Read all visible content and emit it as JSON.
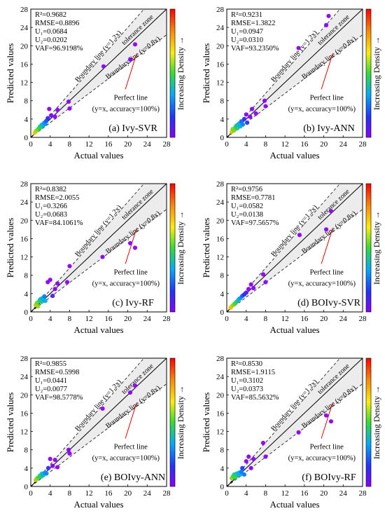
{
  "figure": {
    "common": {
      "xlabel": "Actual values",
      "ylabel": "Predicted values",
      "colorbar_label": "Increasing Density →",
      "boundary_upper": "Boundary line (y=1.2x)",
      "boundary_lower": "Boundary line (y=0.8x)",
      "tolerance": "tolerance zone",
      "perfect_line": "Perfect line",
      "perfect_line_sub": "(y=x, accuracy=100%)",
      "ticks": [
        "0",
        "4",
        "8",
        "12",
        "16",
        "20",
        "24",
        "28"
      ]
    }
  },
  "chart_data": [
    {
      "type": "scatter",
      "title": "(a) Ivy-SVR",
      "xlabel": "Actual values",
      "ylabel": "Predicted values",
      "xlim": [
        0,
        28
      ],
      "ylim": [
        0,
        28
      ],
      "metrics": [
        "R²=0.9682",
        "RMSE=0.8896",
        "U₁=0.0684",
        "U₂=0.0202",
        "VAF=96.9198%"
      ],
      "reference_lines": {
        "perfect": 1.0,
        "upper": 1.2,
        "lower": 0.8
      },
      "colorbar": {
        "label": "Increasing Density →",
        "range": [
          0,
          28
        ]
      },
      "points": [
        {
          "x": 0.8,
          "y": 1.0
        },
        {
          "x": 1.0,
          "y": 1.3
        },
        {
          "x": 1.2,
          "y": 1.5
        },
        {
          "x": 1.5,
          "y": 1.8
        },
        {
          "x": 1.7,
          "y": 2.0
        },
        {
          "x": 1.9,
          "y": 2.4
        },
        {
          "x": 2.1,
          "y": 2.2
        },
        {
          "x": 2.3,
          "y": 2.8
        },
        {
          "x": 2.5,
          "y": 2.6
        },
        {
          "x": 2.8,
          "y": 3.2
        },
        {
          "x": 3.0,
          "y": 2.9
        },
        {
          "x": 3.2,
          "y": 3.6
        },
        {
          "x": 3.5,
          "y": 4.2
        },
        {
          "x": 3.8,
          "y": 6.2
        },
        {
          "x": 4.2,
          "y": 4.8
        },
        {
          "x": 5.0,
          "y": 4.5
        },
        {
          "x": 5.5,
          "y": 6.0
        },
        {
          "x": 7.8,
          "y": 7.8
        },
        {
          "x": 8.0,
          "y": 6.3
        },
        {
          "x": 15.0,
          "y": 15.5
        },
        {
          "x": 20.5,
          "y": 17.0
        },
        {
          "x": 21.5,
          "y": 20.3
        }
      ]
    },
    {
      "type": "scatter",
      "title": "(b) Ivy-ANN",
      "xlabel": "Actual values",
      "ylabel": "Predicted values",
      "xlim": [
        0,
        28
      ],
      "ylim": [
        0,
        28
      ],
      "metrics": [
        "R²=0.9231",
        "RMSE=1.3822",
        "U₁=0.0947",
        "U₂=0.0310",
        "VAF=93.2350%"
      ],
      "reference_lines": {
        "perfect": 1.0,
        "upper": 1.2,
        "lower": 0.8
      },
      "colorbar": {
        "label": "Increasing Density →",
        "range": [
          0,
          28
        ]
      },
      "points": [
        {
          "x": 1.0,
          "y": 1.2
        },
        {
          "x": 1.2,
          "y": 1.8
        },
        {
          "x": 1.5,
          "y": 1.5
        },
        {
          "x": 1.8,
          "y": 2.3
        },
        {
          "x": 2.0,
          "y": 2.6
        },
        {
          "x": 2.2,
          "y": 2.0
        },
        {
          "x": 2.5,
          "y": 3.0
        },
        {
          "x": 2.8,
          "y": 2.4
        },
        {
          "x": 3.0,
          "y": 3.5
        },
        {
          "x": 3.3,
          "y": 2.8
        },
        {
          "x": 3.6,
          "y": 4.0
        },
        {
          "x": 4.0,
          "y": 5.0
        },
        {
          "x": 4.2,
          "y": 3.2
        },
        {
          "x": 4.8,
          "y": 4.5
        },
        {
          "x": 5.2,
          "y": 6.2
        },
        {
          "x": 6.0,
          "y": 5.2
        },
        {
          "x": 7.8,
          "y": 8.0
        },
        {
          "x": 8.0,
          "y": 6.8
        },
        {
          "x": 14.8,
          "y": 19.5
        },
        {
          "x": 20.5,
          "y": 24.5
        },
        {
          "x": 21.0,
          "y": 26.5
        }
      ]
    },
    {
      "type": "scatter",
      "title": "(c) Ivy-RF",
      "xlabel": "Actual values",
      "ylabel": "Predicted values",
      "xlim": [
        0,
        28
      ],
      "ylim": [
        0,
        28
      ],
      "metrics": [
        "R²=0.8382",
        "RMSE=2.0055",
        "U₁=0.3266",
        "U₂=0.0683",
        "VAF=84.1061%"
      ],
      "reference_lines": {
        "perfect": 1.0,
        "upper": 1.2,
        "lower": 0.8
      },
      "colorbar": {
        "label": "Increasing Density →",
        "range": [
          0,
          28
        ]
      },
      "points": [
        {
          "x": 1.0,
          "y": 1.5
        },
        {
          "x": 1.3,
          "y": 2.0
        },
        {
          "x": 1.5,
          "y": 1.2
        },
        {
          "x": 1.8,
          "y": 2.5
        },
        {
          "x": 2.0,
          "y": 2.8
        },
        {
          "x": 2.2,
          "y": 2.2
        },
        {
          "x": 2.4,
          "y": 3.0
        },
        {
          "x": 2.6,
          "y": 2.6
        },
        {
          "x": 2.8,
          "y": 3.4
        },
        {
          "x": 3.0,
          "y": 2.4
        },
        {
          "x": 3.5,
          "y": 6.5
        },
        {
          "x": 4.0,
          "y": 7.0
        },
        {
          "x": 4.5,
          "y": 3.5
        },
        {
          "x": 5.0,
          "y": 5.0
        },
        {
          "x": 5.5,
          "y": 6.2
        },
        {
          "x": 7.5,
          "y": 6.5
        },
        {
          "x": 8.0,
          "y": 10.0
        },
        {
          "x": 14.8,
          "y": 12.0
        },
        {
          "x": 20.5,
          "y": 15.0
        },
        {
          "x": 21.5,
          "y": 14.0
        }
      ]
    },
    {
      "type": "scatter",
      "title": "(d) BOIvy-SVR",
      "xlabel": "Actual values",
      "ylabel": "Predicted values",
      "xlim": [
        0,
        28
      ],
      "ylim": [
        0,
        28
      ],
      "metrics": [
        "R²=0.9756",
        "RMSE=0.7781",
        "U₁=0.0582",
        "U₂=0.0138",
        "VAF=97.5657%"
      ],
      "reference_lines": {
        "perfect": 1.0,
        "upper": 1.2,
        "lower": 0.8
      },
      "colorbar": {
        "label": "Increasing Density →",
        "range": [
          0,
          28
        ]
      },
      "points": [
        {
          "x": 0.8,
          "y": 0.9
        },
        {
          "x": 1.0,
          "y": 1.2
        },
        {
          "x": 1.3,
          "y": 1.5
        },
        {
          "x": 1.6,
          "y": 1.8
        },
        {
          "x": 1.9,
          "y": 2.1
        },
        {
          "x": 2.2,
          "y": 2.4
        },
        {
          "x": 2.5,
          "y": 2.8
        },
        {
          "x": 2.8,
          "y": 3.0
        },
        {
          "x": 3.2,
          "y": 3.5
        },
        {
          "x": 3.6,
          "y": 3.8
        },
        {
          "x": 4.0,
          "y": 4.2
        },
        {
          "x": 4.5,
          "y": 5.0
        },
        {
          "x": 5.0,
          "y": 6.0
        },
        {
          "x": 5.5,
          "y": 5.2
        },
        {
          "x": 7.5,
          "y": 8.2
        },
        {
          "x": 8.0,
          "y": 6.5
        },
        {
          "x": 15.0,
          "y": 16.8
        },
        {
          "x": 20.5,
          "y": 18.0
        },
        {
          "x": 21.5,
          "y": 22.0
        }
      ]
    },
    {
      "type": "scatter",
      "title": "(e) BOIvy-ANN",
      "xlabel": "Actual values",
      "ylabel": "Predicted values",
      "xlim": [
        0,
        28
      ],
      "ylim": [
        0,
        28
      ],
      "metrics": [
        "R²=0.9855",
        "RMSE=0.5998",
        "U₁=0.0441",
        "U₂=0.0077",
        "VAF=98.5778%"
      ],
      "reference_lines": {
        "perfect": 1.0,
        "upper": 1.2,
        "lower": 0.8
      },
      "colorbar": {
        "label": "Increasing Density →",
        "range": [
          0,
          28
        ]
      },
      "points": [
        {
          "x": 1.0,
          "y": 1.4
        },
        {
          "x": 1.3,
          "y": 1.8
        },
        {
          "x": 1.6,
          "y": 2.0
        },
        {
          "x": 1.9,
          "y": 2.4
        },
        {
          "x": 2.1,
          "y": 2.1
        },
        {
          "x": 2.3,
          "y": 2.8
        },
        {
          "x": 2.6,
          "y": 2.5
        },
        {
          "x": 2.9,
          "y": 3.0
        },
        {
          "x": 3.2,
          "y": 2.8
        },
        {
          "x": 3.6,
          "y": 4.0
        },
        {
          "x": 4.0,
          "y": 6.0
        },
        {
          "x": 4.5,
          "y": 4.5
        },
        {
          "x": 5.0,
          "y": 5.8
        },
        {
          "x": 5.5,
          "y": 4.2
        },
        {
          "x": 7.8,
          "y": 8.0
        },
        {
          "x": 8.0,
          "y": 7.2
        },
        {
          "x": 14.8,
          "y": 17.0
        },
        {
          "x": 20.5,
          "y": 20.5
        },
        {
          "x": 21.5,
          "y": 22.0
        }
      ]
    },
    {
      "type": "scatter",
      "title": "(f) BOIvy-RF",
      "xlabel": "Actual values",
      "ylabel": "Predicted values",
      "xlim": [
        0,
        28
      ],
      "ylim": [
        0,
        28
      ],
      "metrics": [
        "R²=0.8530",
        "RMSE=1.9115",
        "U₁=0.3102",
        "U₂=0.0373",
        "VAF=85.5632%"
      ],
      "reference_lines": {
        "perfect": 1.0,
        "upper": 1.2,
        "lower": 0.8
      },
      "colorbar": {
        "label": "Increasing Density →",
        "range": [
          0,
          28
        ]
      },
      "points": [
        {
          "x": 1.0,
          "y": 1.8
        },
        {
          "x": 1.3,
          "y": 2.2
        },
        {
          "x": 1.5,
          "y": 2.6
        },
        {
          "x": 1.8,
          "y": 2.0
        },
        {
          "x": 2.0,
          "y": 2.8
        },
        {
          "x": 2.2,
          "y": 2.4
        },
        {
          "x": 2.5,
          "y": 3.0
        },
        {
          "x": 2.8,
          "y": 2.6
        },
        {
          "x": 3.0,
          "y": 3.2
        },
        {
          "x": 3.2,
          "y": 4.0
        },
        {
          "x": 3.6,
          "y": 2.6
        },
        {
          "x": 4.0,
          "y": 5.5
        },
        {
          "x": 4.5,
          "y": 6.5
        },
        {
          "x": 5.0,
          "y": 4.0
        },
        {
          "x": 5.5,
          "y": 6.0
        },
        {
          "x": 7.5,
          "y": 9.5
        },
        {
          "x": 8.0,
          "y": 6.5
        },
        {
          "x": 14.8,
          "y": 11.8
        },
        {
          "x": 20.5,
          "y": 15.5
        },
        {
          "x": 21.5,
          "y": 14.2
        }
      ]
    }
  ]
}
